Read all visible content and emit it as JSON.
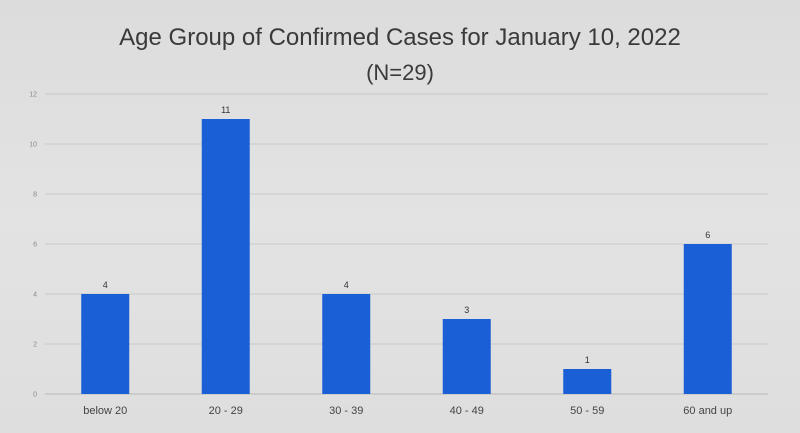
{
  "chart_data": {
    "type": "bar",
    "title": "Age Group of Confirmed Cases for January 10, 2022",
    "subtitle": "(N=29)",
    "categories": [
      "below 20",
      "20 - 29",
      "30 - 39",
      "40 - 49",
      "50 - 59",
      "60 and up"
    ],
    "values": [
      4,
      11,
      4,
      3,
      1,
      6
    ],
    "ylim": [
      0,
      12
    ],
    "yticks": [
      0,
      2,
      4,
      6,
      8,
      10,
      12
    ],
    "grid": true,
    "legend": "none",
    "bar_color": "#1a5fd6"
  }
}
